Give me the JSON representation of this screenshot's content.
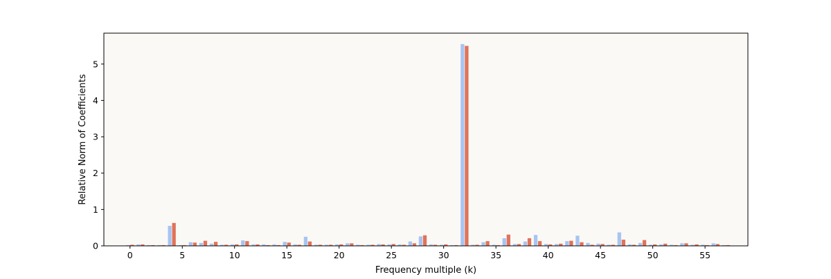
{
  "chart_data": {
    "type": "bar",
    "title": "",
    "xlabel": "Frequency multiple (k)",
    "ylabel": "Relative Norm of Coefficients",
    "xlim": [
      -2.5,
      59.1
    ],
    "ylim": [
      0,
      5.85
    ],
    "x_ticks": [
      0,
      5,
      10,
      15,
      20,
      25,
      30,
      35,
      40,
      45,
      50,
      55
    ],
    "y_ticks": [
      0,
      1,
      2,
      3,
      4,
      5
    ],
    "grid": false,
    "legend": "none",
    "plot_background": "#fbf9f5",
    "x": [
      0,
      1,
      2,
      3,
      4,
      5,
      6,
      7,
      8,
      9,
      10,
      11,
      12,
      13,
      14,
      15,
      16,
      17,
      18,
      19,
      20,
      21,
      22,
      23,
      24,
      25,
      26,
      27,
      28,
      29,
      30,
      31,
      32,
      33,
      34,
      35,
      36,
      37,
      38,
      39,
      40,
      41,
      42,
      43,
      44,
      45,
      46,
      47,
      48,
      49,
      50,
      51,
      52,
      53,
      54,
      55,
      56,
      57
    ],
    "series": [
      {
        "color": "#a7c4f2",
        "values": [
          0.02,
          0.04,
          0.02,
          0.02,
          0.55,
          0.02,
          0.1,
          0.08,
          0.06,
          0.03,
          0.04,
          0.15,
          0.04,
          0.04,
          0.04,
          0.11,
          0.04,
          0.25,
          0.03,
          0.03,
          0.04,
          0.07,
          0.03,
          0.03,
          0.05,
          0.04,
          0.04,
          0.12,
          0.26,
          0.04,
          0.03,
          0.02,
          5.55,
          0.03,
          0.1,
          0.03,
          0.21,
          0.05,
          0.12,
          0.3,
          0.05,
          0.05,
          0.13,
          0.28,
          0.08,
          0.06,
          0.03,
          0.37,
          0.04,
          0.08,
          0.03,
          0.04,
          0.03,
          0.07,
          0.03,
          0.03,
          0.07,
          0.02
        ]
      },
      {
        "color": "#e0735a",
        "values": [
          0.03,
          0.04,
          0.02,
          0.02,
          0.63,
          0.02,
          0.09,
          0.14,
          0.11,
          0.03,
          0.04,
          0.13,
          0.04,
          0.02,
          0.02,
          0.09,
          0.03,
          0.12,
          0.03,
          0.03,
          0.04,
          0.07,
          0.02,
          0.03,
          0.04,
          0.05,
          0.03,
          0.07,
          0.29,
          0.03,
          0.04,
          0.02,
          5.5,
          0.03,
          0.13,
          0.02,
          0.31,
          0.05,
          0.21,
          0.13,
          0.04,
          0.06,
          0.14,
          0.1,
          0.03,
          0.05,
          0.03,
          0.17,
          0.03,
          0.16,
          0.04,
          0.06,
          0.02,
          0.07,
          0.04,
          0.02,
          0.05,
          0.02
        ]
      }
    ]
  }
}
